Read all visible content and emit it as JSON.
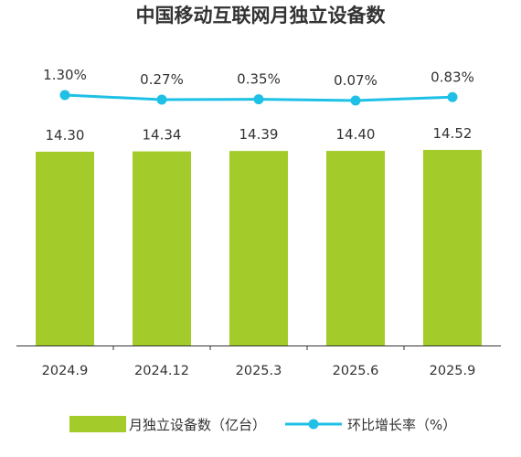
{
  "chart_data": {
    "type": "bar",
    "title": "中国移动互联网月独立设备数",
    "categories": [
      "2024.9",
      "2024.12",
      "2025.3",
      "2025.6",
      "2025.9"
    ],
    "series": [
      {
        "name": "月独立设备数（亿台）",
        "type": "bar",
        "values": [
          14.3,
          14.34,
          14.39,
          14.4,
          14.52
        ],
        "value_labels": [
          "14.30",
          "14.34",
          "14.39",
          "14.40",
          "14.52"
        ],
        "color": "#a3cc2b"
      },
      {
        "name": "环比增长率（%）",
        "type": "line",
        "values": [
          1.3,
          0.27,
          0.35,
          0.07,
          0.83
        ],
        "value_labels": [
          "1.30%",
          "0.27%",
          "0.35%",
          "0.07%",
          "0.83%"
        ],
        "color": "#1fc0e6"
      }
    ],
    "legend_position": "bottom",
    "grid": false
  }
}
